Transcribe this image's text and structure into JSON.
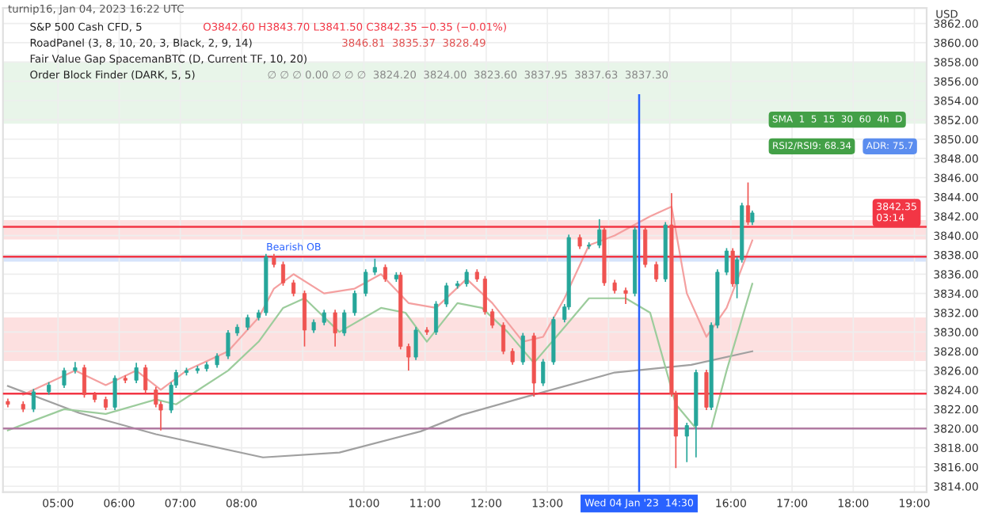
{
  "chart_data": {
    "type": "candlestick",
    "x": [
      4.18,
      4.43,
      4.6,
      4.85,
      5.1,
      5.28,
      5.43,
      5.6,
      5.78,
      5.93,
      6.1,
      6.28,
      6.43,
      6.6,
      6.68,
      6.85,
      6.93,
      7.1,
      7.28,
      7.43,
      7.6,
      7.78,
      7.93,
      8.1,
      8.28,
      8.4,
      8.53,
      8.68,
      8.85,
      9.03,
      9.18,
      9.35,
      9.53,
      9.68,
      9.85,
      10.03,
      10.18,
      10.35,
      10.53,
      10.6,
      10.73,
      10.85,
      11.03,
      11.18,
      11.35,
      11.53,
      11.68,
      11.85,
      11.98,
      12.1,
      12.28,
      12.43,
      12.6,
      12.78,
      12.93,
      13.1,
      13.28,
      13.35,
      13.53,
      13.68,
      13.85,
      13.93,
      14.1,
      14.28,
      14.43,
      14.6,
      14.78,
      14.93,
      15.03,
      15.1,
      15.28,
      15.43,
      15.6,
      15.68,
      15.78,
      15.93,
      16.03,
      16.1,
      16.18,
      16.28,
      16.35
    ],
    "ohlc": [
      [
        3822.8,
        3823.1,
        3822.2,
        3822.5
      ],
      [
        3822.5,
        3822.8,
        3821.7,
        3822.0
      ],
      [
        3822.0,
        3824.1,
        3821.7,
        3823.8
      ],
      [
        3823.8,
        3824.8,
        3823.5,
        3824.5
      ],
      [
        3824.5,
        3826.3,
        3824.2,
        3826.0
      ],
      [
        3826.0,
        3826.9,
        3825.7,
        3826.3
      ],
      [
        3826.3,
        3826.6,
        3823.2,
        3823.5
      ],
      [
        3823.5,
        3823.8,
        3822.7,
        3823.0
      ],
      [
        3823.0,
        3823.3,
        3821.9,
        3822.2
      ],
      [
        3822.2,
        3825.5,
        3821.9,
        3825.2
      ],
      [
        3825.2,
        3825.5,
        3824.7,
        3825.0
      ],
      [
        3825.0,
        3826.8,
        3824.7,
        3826.3
      ],
      [
        3826.3,
        3826.6,
        3823.7,
        3824.0
      ],
      [
        3824.0,
        3824.3,
        3822.2,
        3822.5
      ],
      [
        3822.5,
        3822.8,
        3819.8,
        3821.9
      ],
      [
        3821.9,
        3824.8,
        3821.6,
        3824.5
      ],
      [
        3824.5,
        3826.1,
        3824.2,
        3825.8
      ],
      [
        3825.8,
        3826.3,
        3825.5,
        3826.0
      ],
      [
        3826.0,
        3826.5,
        3825.7,
        3826.2
      ],
      [
        3826.2,
        3826.9,
        3825.9,
        3826.6
      ],
      [
        3826.6,
        3827.8,
        3826.3,
        3827.5
      ],
      [
        3827.5,
        3830.2,
        3827.2,
        3829.9
      ],
      [
        3829.9,
        3830.8,
        3829.6,
        3830.5
      ],
      [
        3830.5,
        3831.8,
        3830.2,
        3831.5
      ],
      [
        3831.5,
        3832.3,
        3831.2,
        3832.0
      ],
      [
        3832.0,
        3838.1,
        3831.7,
        3837.8
      ],
      [
        3837.8,
        3838.1,
        3836.7,
        3837.0
      ],
      [
        3837.0,
        3837.3,
        3834.8,
        3835.1
      ],
      [
        3835.1,
        3835.4,
        3833.7,
        3834.0
      ],
      [
        3834.0,
        3834.3,
        3828.5,
        3830.2
      ],
      [
        3830.2,
        3831.3,
        3829.9,
        3831.0
      ],
      [
        3831.0,
        3832.3,
        3830.7,
        3832.0
      ],
      [
        3832.0,
        3832.3,
        3828.5,
        3829.9
      ],
      [
        3829.9,
        3832.3,
        3829.6,
        3832.0
      ],
      [
        3832.0,
        3834.3,
        3831.7,
        3834.0
      ],
      [
        3834.0,
        3836.5,
        3833.7,
        3836.2
      ],
      [
        3836.2,
        3837.6,
        3835.9,
        3836.7
      ],
      [
        3836.7,
        3837.0,
        3835.2,
        3835.5
      ],
      [
        3835.5,
        3836.2,
        3835.2,
        3835.9
      ],
      [
        3835.9,
        3836.2,
        3828.2,
        3828.5
      ],
      [
        3828.5,
        3828.8,
        3826.0,
        3827.4
      ],
      [
        3827.4,
        3830.5,
        3827.1,
        3830.2
      ],
      [
        3830.2,
        3830.5,
        3829.7,
        3830.0
      ],
      [
        3830.0,
        3833.2,
        3829.7,
        3832.9
      ],
      [
        3832.9,
        3835.1,
        3832.6,
        3834.8
      ],
      [
        3834.8,
        3835.3,
        3834.5,
        3835.0
      ],
      [
        3835.0,
        3836.5,
        3834.7,
        3836.2
      ],
      [
        3836.2,
        3836.5,
        3835.2,
        3835.5
      ],
      [
        3835.5,
        3835.8,
        3831.8,
        3832.1
      ],
      [
        3832.1,
        3832.4,
        3830.4,
        3830.7
      ],
      [
        3830.7,
        3831.0,
        3827.7,
        3828.0
      ],
      [
        3828.0,
        3828.3,
        3826.6,
        3826.9
      ],
      [
        3826.9,
        3829.9,
        3826.6,
        3829.6
      ],
      [
        3829.6,
        3829.9,
        3823.3,
        3824.7
      ],
      [
        3824.7,
        3827.2,
        3824.4,
        3826.9
      ],
      [
        3826.9,
        3831.6,
        3826.6,
        3831.3
      ],
      [
        3831.3,
        3832.9,
        3831.0,
        3832.6
      ],
      [
        3832.6,
        3840.1,
        3832.3,
        3839.8
      ],
      [
        3839.8,
        3840.1,
        3838.6,
        3838.9
      ],
      [
        3838.9,
        3839.3,
        3838.6,
        3839.0
      ],
      [
        3839.0,
        3841.7,
        3838.7,
        3840.6
      ],
      [
        3840.6,
        3840.9,
        3834.8,
        3835.1
      ],
      [
        3835.1,
        3835.4,
        3834.0,
        3834.3
      ],
      [
        3834.3,
        3834.6,
        3832.9,
        3834.0
      ],
      [
        3834.0,
        3840.9,
        3833.7,
        3840.6
      ],
      [
        3840.6,
        3840.9,
        3836.7,
        3837.0
      ],
      [
        3837.0,
        3837.3,
        3835.2,
        3835.5
      ],
      [
        3835.5,
        3841.4,
        3835.2,
        3841.1
      ],
      [
        3841.1,
        3844.4,
        3823.3,
        3823.6
      ],
      [
        3823.6,
        3823.9,
        3815.9,
        3819.2
      ],
      [
        3819.2,
        3820.6,
        3816.5,
        3820.3
      ],
      [
        3820.3,
        3826.1,
        3817.0,
        3825.8
      ],
      [
        3825.8,
        3826.1,
        3821.9,
        3822.2
      ],
      [
        3822.2,
        3831.0,
        3821.9,
        3830.7
      ],
      [
        3830.7,
        3836.5,
        3830.4,
        3836.2
      ],
      [
        3836.2,
        3838.7,
        3835.9,
        3838.4
      ],
      [
        3838.4,
        3838.7,
        3834.7,
        3835.0
      ],
      [
        3835.0,
        3837.8,
        3833.5,
        3837.5
      ],
      [
        3837.5,
        3843.4,
        3837.2,
        3843.1
      ],
      [
        3843.1,
        3845.5,
        3841.1,
        3841.4
      ],
      [
        3841.4,
        3842.6,
        3841.1,
        3842.35
      ]
    ],
    "series": [
      {
        "type": "line",
        "color": "#a0a0a0",
        "x": [
          4.18,
          5.35,
          6.6,
          8.35,
          9.6,
          10.93,
          11.6,
          12.55,
          14.1,
          15.35,
          16.35
        ],
        "values": [
          3824.4,
          3821.6,
          3819.4,
          3817.0,
          3817.5,
          3819.7,
          3821.4,
          3823.1,
          3825.8,
          3826.6,
          3828.0
        ]
      },
      {
        "type": "line",
        "color": "#f4a0a0",
        "x": [
          4.43,
          5.28,
          5.78,
          6.28,
          6.68,
          7.1,
          7.78,
          8.28,
          8.53,
          8.85,
          9.35,
          9.85,
          10.28,
          10.73,
          11.18,
          11.68,
          12.1,
          12.6,
          12.93,
          13.28,
          13.68,
          14.1,
          14.68,
          15.03,
          15.28,
          15.6,
          15.93,
          16.35
        ],
        "values": [
          3823.5,
          3826.0,
          3824.5,
          3826.0,
          3824.0,
          3826.0,
          3828.0,
          3831.5,
          3834.5,
          3836.0,
          3834.0,
          3834.5,
          3836.0,
          3833.0,
          3832.5,
          3835.5,
          3833.0,
          3829.0,
          3829.5,
          3833.5,
          3839.0,
          3840.0,
          3842.0,
          3843.0,
          3834.0,
          3829.5,
          3832.5,
          3839.5
        ]
      },
      {
        "type": "line",
        "color": "#9ccc9c",
        "x": [
          4.18,
          5.1,
          5.78,
          6.6,
          6.93,
          7.78,
          8.28,
          8.68,
          9.03,
          9.6,
          10.28,
          10.68,
          11.03,
          11.53,
          11.93,
          12.35,
          12.78,
          13.28,
          13.68,
          14.28,
          14.68,
          15.1,
          15.43,
          15.68,
          15.93,
          16.35
        ],
        "values": [
          3819.8,
          3822.0,
          3821.5,
          3823.0,
          3822.5,
          3826.0,
          3829.0,
          3832.5,
          3833.5,
          3830.0,
          3832.5,
          3832.0,
          3829.0,
          3833.0,
          3832.5,
          3830.0,
          3826.8,
          3830.5,
          3833.5,
          3833.5,
          3832.0,
          3822.5,
          3820.0,
          3820.0,
          3826.0,
          3835.0
        ]
      }
    ],
    "xlim": [
      4.1,
      19.2
    ],
    "ylim": [
      3813.4,
      3863.6
    ],
    "xticks": [
      {
        "value": 5,
        "label": "05:00"
      },
      {
        "value": 6,
        "label": "06:00"
      },
      {
        "value": 7,
        "label": "07:00"
      },
      {
        "value": 8,
        "label": "08:00"
      },
      {
        "value": 9,
        "label": null
      },
      {
        "value": 10,
        "label": "10:00"
      },
      {
        "value": 11,
        "label": "11:00"
      },
      {
        "value": 12,
        "label": "12:00"
      },
      {
        "value": 13,
        "label": "13:00"
      },
      {
        "value": 14,
        "label": null
      },
      {
        "value": 15,
        "label": null
      },
      {
        "value": 16,
        "label": "16:00"
      },
      {
        "value": 17,
        "label": "17:00"
      },
      {
        "value": 18,
        "label": "18:00"
      },
      {
        "value": 19,
        "label": "19:00"
      }
    ],
    "yticks": [
      {
        "value": 3814,
        "label": "3814.00"
      },
      {
        "value": 3816,
        "label": "3816.00"
      },
      {
        "value": 3818,
        "label": "3818.00"
      },
      {
        "value": 3820,
        "label": "3820.00"
      },
      {
        "value": 3822,
        "label": "3822.00"
      },
      {
        "value": 3824,
        "label": "3824.00"
      },
      {
        "value": 3826,
        "label": "3826.00"
      },
      {
        "value": 3828,
        "label": "3828.00"
      },
      {
        "value": 3830,
        "label": "3830.00"
      },
      {
        "value": 3832,
        "label": "3832.00"
      },
      {
        "value": 3834,
        "label": "3834.00"
      },
      {
        "value": 3836,
        "label": "3836.00"
      },
      {
        "value": 3838,
        "label": "3838.00"
      },
      {
        "value": 3840,
        "label": "3840.00"
      },
      {
        "value": 3842,
        "label": "3842.00"
      },
      {
        "value": 3844,
        "label": "3844.00"
      },
      {
        "value": 3846,
        "label": "3846.00"
      },
      {
        "value": 3848,
        "label": "3848.00"
      },
      {
        "value": 3850,
        "label": "3850.00"
      },
      {
        "value": 3852,
        "label": "3852.00"
      },
      {
        "value": 3854,
        "label": "3854.00"
      },
      {
        "value": 3856,
        "label": "3856.00"
      },
      {
        "value": 3858,
        "label": "3858.00"
      },
      {
        "value": 3860,
        "label": "3860.00"
      },
      {
        "value": 3862,
        "label": "3862.00"
      }
    ],
    "grid": true,
    "ref_lines": [
      {
        "axis": "y",
        "value": 3837.8,
        "label": "Bearish OB",
        "color": "#f23645"
      },
      {
        "axis": "y",
        "value": 3840.9,
        "color": "#f23645"
      },
      {
        "axis": "y",
        "value": 3823.6,
        "color": "#f23645"
      },
      {
        "axis": "y",
        "value": 3820.0,
        "color": "#b07aa1"
      },
      {
        "axis": "x",
        "value": 14.5,
        "label": "Wed 04 Jan '23  14:30",
        "color": "#2962ff"
      }
    ],
    "bands": [
      {
        "axis": "y",
        "from": 3851.6,
        "to": 3858.0,
        "color": "#e8f5e9"
      },
      {
        "axis": "y",
        "from": 3839.6,
        "to": 3841.6,
        "color": "#fde0e0"
      },
      {
        "axis": "y",
        "from": 3827.0,
        "to": 3831.5,
        "color": "#fde0e0"
      },
      {
        "axis": "y",
        "from": 3837.3,
        "to": 3838.0,
        "color": "#d6e4fb"
      }
    ],
    "annotations": [
      "turnip16, Jan 04, 2023 16:22 UTC",
      "S&P 500 Cash CFD, 5",
      "O3842.60 H3843.70 L3841.50 C3842.35 −0.35 (−0.01%)",
      "RoadPanel (3, 8, 10, 20, 3, Black, 2, 9, 14)",
      "3846.81  3835.37  3828.49",
      "Fair Value Gap SpacemanBTC (D, Current TF, 10, 20)",
      "Order Block Finder (DARK, 5, 5)",
      "∅ ∅ ∅ 0.00 ∅ ∅ ∅  3824.20  3824.00  3823.60  3837.95  3837.63  3837.30",
      "SMA  1  5  15  30  60  4h  D",
      "RSI2/RSI9: 68.34",
      "ADR: 75.7",
      "USD",
      "3842.35\n03:14"
    ]
  }
}
